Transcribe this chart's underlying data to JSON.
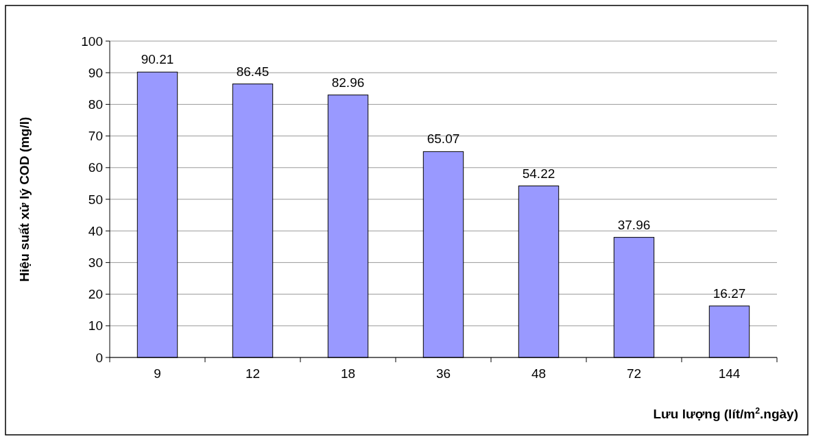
{
  "chart_data": {
    "type": "bar",
    "xlabel": "Lưu lượng (lít/m$^{2}$.ngày)",
    "ylabel": "Hiệu suất xử lý COD (mg/l)",
    "categories": [
      "9",
      "12",
      "18",
      "36",
      "48",
      "72",
      "144"
    ],
    "values": [
      90.21,
      86.45,
      82.96,
      65.07,
      54.22,
      37.96,
      16.27
    ],
    "color": "#9999ff",
    "ylim": [
      0,
      100
    ],
    "yticks": [
      0,
      10,
      20,
      30,
      40,
      50,
      60,
      70,
      80,
      90,
      100
    ],
    "grid": "y",
    "data_labels": true
  }
}
